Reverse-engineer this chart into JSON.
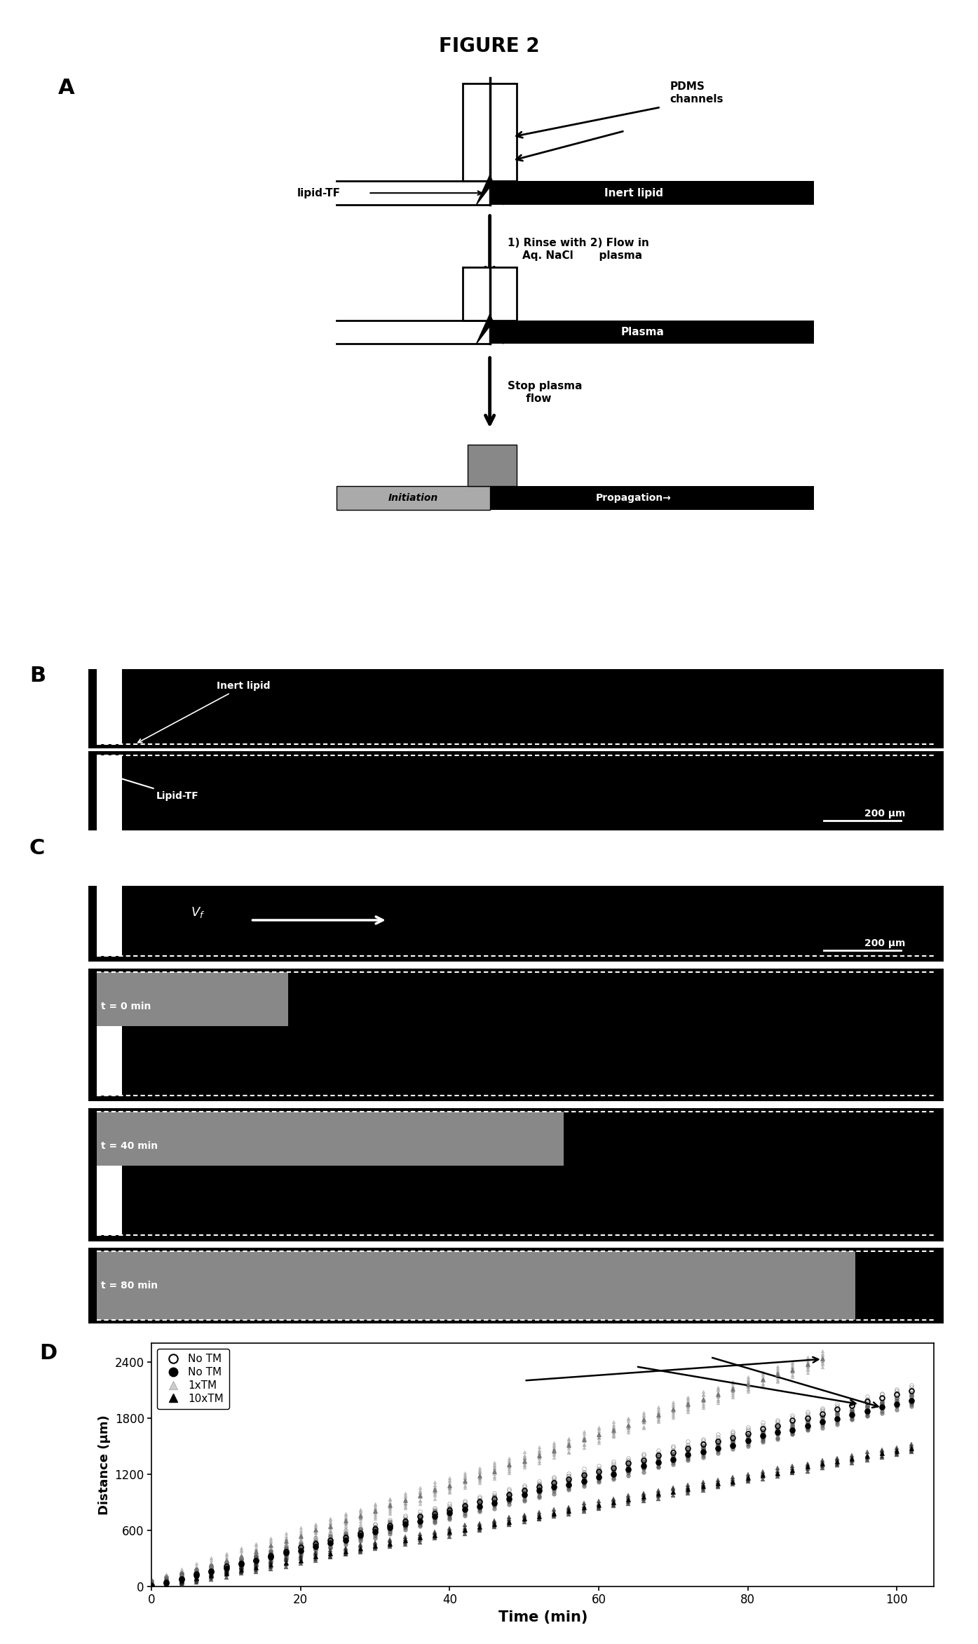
{
  "title": "FIGURE 2",
  "background": "#ffffff",
  "panel_D": {
    "xlabel": "Time (min)",
    "ylabel": "Distance (μm)",
    "xlim": [
      0,
      105
    ],
    "ylim": [
      0,
      2600
    ],
    "xticks": [
      0,
      20,
      40,
      60,
      80,
      100
    ],
    "yticks": [
      0,
      600,
      1200,
      1800,
      2400
    ],
    "slope_1tm": 27.0,
    "slope_no_tm_open": 20.5,
    "slope_no_tm_closed": 19.5,
    "slope_10tm": 14.5
  }
}
